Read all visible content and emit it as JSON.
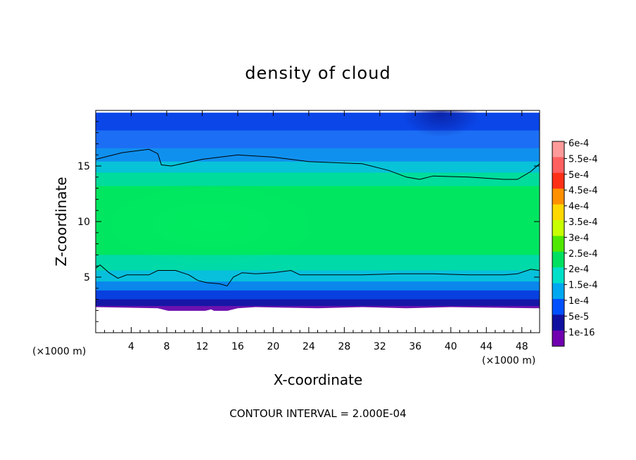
{
  "chart_data": {
    "type": "heatmap",
    "title": "density of cloud",
    "xlabel": "X-coordinate",
    "ylabel": "Z-coordinate",
    "x_unit_label": "(×1000 m)",
    "y_unit_label": "(×1000 m)",
    "xlim": [
      0,
      50
    ],
    "ylim": [
      0,
      20
    ],
    "x_ticks": [
      4,
      8,
      12,
      16,
      20,
      24,
      28,
      32,
      36,
      40,
      44,
      48
    ],
    "y_ticks": [
      5,
      10,
      15
    ],
    "footer": "CONTOUR INTERVAL = 2.000E-04",
    "colorbar": {
      "labels": [
        "6e-4",
        "5.5e-4",
        "5e-4",
        "4.5e-4",
        "4e-4",
        "3.5e-4",
        "3e-4",
        "2.5e-4",
        "2e-4",
        "1.5e-4",
        "1e-4",
        "5e-5",
        "1e-16"
      ],
      "colors": [
        "#ff9a9a",
        "#ff6060",
        "#ff3018",
        "#ff9000",
        "#ffd800",
        "#c8ff00",
        "#50e800",
        "#00e060",
        "#00e0c8",
        "#00a8f0",
        "#0050ff",
        "#1010a0",
        "#7000b0"
      ]
    },
    "contour_lines": [
      {
        "level": "2.000E-04",
        "points": [
          [
            0,
            15.6
          ],
          [
            3,
            16.2
          ],
          [
            6,
            16.5
          ],
          [
            7,
            16.1
          ],
          [
            7.4,
            15.1
          ],
          [
            8.5,
            15.0
          ],
          [
            12,
            15.6
          ],
          [
            16,
            16.0
          ],
          [
            20,
            15.8
          ],
          [
            24,
            15.4
          ],
          [
            30,
            15.2
          ],
          [
            33,
            14.6
          ],
          [
            35,
            14.0
          ],
          [
            36.5,
            13.8
          ],
          [
            38,
            14.1
          ],
          [
            42,
            14.0
          ],
          [
            46,
            13.8
          ],
          [
            47.5,
            13.8
          ],
          [
            49,
            14.5
          ],
          [
            50,
            15.2
          ]
        ]
      },
      {
        "level": "2.000E-04",
        "points": [
          [
            0,
            5.8
          ],
          [
            0.5,
            6.1
          ],
          [
            1.5,
            5.4
          ],
          [
            2.5,
            4.9
          ],
          [
            3.5,
            5.2
          ],
          [
            6,
            5.2
          ],
          [
            7,
            5.6
          ],
          [
            9,
            5.6
          ],
          [
            10.5,
            5.2
          ],
          [
            11.5,
            4.7
          ],
          [
            12.5,
            4.5
          ],
          [
            14,
            4.4
          ],
          [
            14.8,
            4.2
          ],
          [
            15.5,
            5.0
          ],
          [
            16.5,
            5.4
          ],
          [
            18,
            5.3
          ],
          [
            20,
            5.4
          ],
          [
            22,
            5.6
          ],
          [
            23,
            5.2
          ],
          [
            27,
            5.2
          ],
          [
            30,
            5.2
          ],
          [
            34,
            5.3
          ],
          [
            38,
            5.3
          ],
          [
            42,
            5.2
          ],
          [
            46,
            5.2
          ],
          [
            47.5,
            5.3
          ],
          [
            49,
            5.7
          ],
          [
            50,
            5.6
          ]
        ]
      }
    ],
    "fill_bands": [
      {
        "top": 19.8,
        "bottom": 18.2,
        "color": "#0a46e8"
      },
      {
        "top": 18.2,
        "bottom": 16.6,
        "color": "#1c6ef4"
      },
      {
        "top": 16.6,
        "bottom": 15.4,
        "color": "#1090ee"
      },
      {
        "top": 15.4,
        "bottom": 14.4,
        "color": "#08c2d8"
      },
      {
        "top": 14.4,
        "bottom": 13.2,
        "color": "#00dc9c"
      },
      {
        "top": 13.2,
        "bottom": 7.0,
        "color": "#00e660"
      },
      {
        "top": 7.0,
        "bottom": 5.6,
        "color": "#00daa8"
      },
      {
        "top": 5.6,
        "bottom": 4.6,
        "color": "#08c0dc"
      },
      {
        "top": 4.6,
        "bottom": 3.8,
        "color": "#0a86ec"
      },
      {
        "top": 3.8,
        "bottom": 3.0,
        "color": "#0840e0"
      },
      {
        "top": 3.0,
        "bottom": 2.4,
        "color": "#1616a6"
      },
      {
        "top": 2.4,
        "bottom": 2.0,
        "color": "#6c12b0"
      }
    ]
  }
}
